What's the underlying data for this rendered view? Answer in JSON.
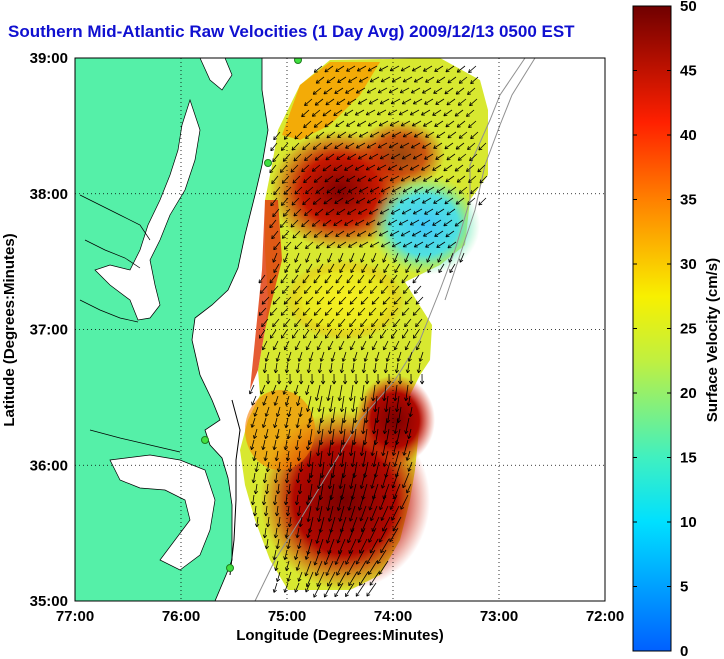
{
  "title": "Southern Mid-Atlantic Raw Velocities (1 Day Avg) 2009/12/13 0500 EST",
  "map": {
    "xlabel": "Longitude (Degrees:Minutes)",
    "ylabel": "Latitude (Degrees:Minutes)",
    "xlim": [
      -77,
      -72
    ],
    "ylim": [
      35,
      39
    ],
    "x_ticks": [
      {
        "value": -77,
        "label": "77:00"
      },
      {
        "value": -76,
        "label": "76:00"
      },
      {
        "value": -75,
        "label": "75:00"
      },
      {
        "value": -74,
        "label": "74:00"
      },
      {
        "value": -73,
        "label": "73:00"
      },
      {
        "value": -72,
        "label": "72:00"
      }
    ],
    "y_ticks": [
      {
        "value": 35,
        "label": "35:00"
      },
      {
        "value": 36,
        "label": "36:00"
      },
      {
        "value": 37,
        "label": "37:00"
      },
      {
        "value": 38,
        "label": "38:00"
      },
      {
        "value": 39,
        "label": "39:00"
      }
    ],
    "grid": true,
    "land_color": "#55f0a8",
    "colors": {
      "high": "#800000",
      "mid": "#e8e820",
      "low": "#40d0f0"
    }
  },
  "colorbar": {
    "label": "Surface Velocity (cm/s)",
    "min": 0,
    "max": 50,
    "ticks": [
      "0",
      "5",
      "10",
      "15",
      "20",
      "25",
      "30",
      "35",
      "40",
      "45",
      "50"
    ]
  },
  "chart_data": {
    "type": "heatmap",
    "variable": "Surface Velocity (cm/s)",
    "speed_zones": [
      {
        "lon": -74.5,
        "lat": 38.0,
        "value": 48
      },
      {
        "lon": -73.6,
        "lat": 37.7,
        "value": 12
      },
      {
        "lon": -74.3,
        "lat": 37.1,
        "value": 27
      },
      {
        "lon": -74.0,
        "lat": 36.1,
        "value": 47
      },
      {
        "lon": -74.4,
        "lat": 35.5,
        "value": 49
      },
      {
        "lon": -75.0,
        "lat": 36.6,
        "value": 30
      }
    ]
  }
}
